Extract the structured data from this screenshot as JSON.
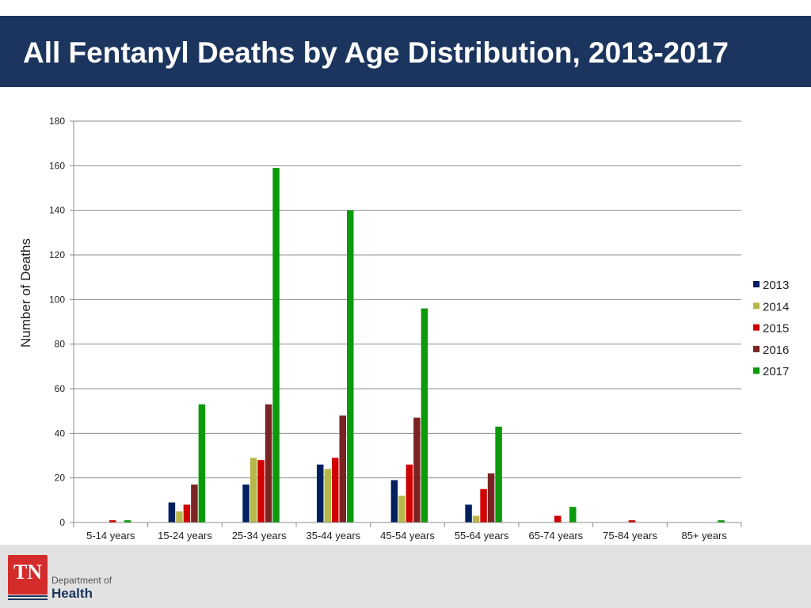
{
  "header": {
    "title": "All Fentanyl Deaths by Age Distribution, 2013-2017"
  },
  "chart_data": {
    "type": "bar",
    "title": "All Fentanyl Deaths by Age Distribution, 2013-2017",
    "xlabel": "",
    "ylabel": "Number of Deaths",
    "ylim": [
      0,
      180
    ],
    "yticks": [
      0,
      20,
      40,
      60,
      80,
      100,
      120,
      140,
      160,
      180
    ],
    "grid": true,
    "legend_position": "right",
    "categories": [
      "5-14 years",
      "15-24 years",
      "25-34 years",
      "35-44 years",
      "45-54 years",
      "55-64 years",
      "65-74 years",
      "75-84 years",
      "85+ years"
    ],
    "series": [
      {
        "name": "2013",
        "color": "#002060",
        "values": [
          0,
          9,
          17,
          26,
          19,
          8,
          0,
          0,
          0
        ]
      },
      {
        "name": "2014",
        "color": "#b8b84a",
        "values": [
          0,
          5,
          29,
          24,
          12,
          3,
          0,
          0,
          0
        ]
      },
      {
        "name": "2015",
        "color": "#d00000",
        "values": [
          1,
          8,
          28,
          29,
          26,
          15,
          3,
          1,
          0
        ]
      },
      {
        "name": "2016",
        "color": "#7b2323",
        "values": [
          0,
          17,
          53,
          48,
          47,
          22,
          0,
          0,
          0
        ]
      },
      {
        "name": "2017",
        "color": "#0a9a0a",
        "values": [
          1,
          53,
          159,
          140,
          96,
          43,
          7,
          0,
          1
        ]
      }
    ]
  },
  "footer": {
    "logo_text": "TN",
    "dept_line1": "Department of",
    "dept_line2": "Health"
  }
}
